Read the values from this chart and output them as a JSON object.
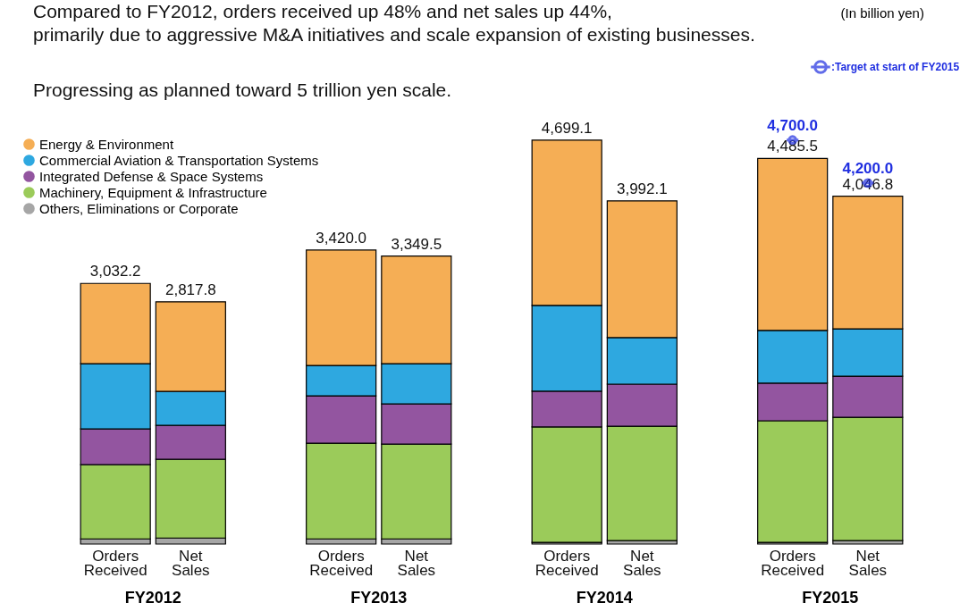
{
  "chart_data": {
    "type": "bar",
    "stacked": true,
    "title": "Compared to FY2012, orders received up 48% and net sales up 44%,\n primarily due to aggressive M&A initiatives and scale expansion of existing businesses.",
    "subtitle": "Progressing as planned toward 5 trillion yen scale.",
    "annotations": [
      "(In billion yen)",
      "FY2012",
      "FY2013",
      "FY2014",
      "FY2015"
    ],
    "categories": [
      "Orders Received",
      "Net Sales",
      "Orders Received",
      "Net Sales",
      "Orders Received",
      "Net Sales",
      "Orders Received",
      "Net Sales"
    ],
    "series": [
      {
        "name": "Others, Eliminations or Corporate",
        "color": "#a6a6a6",
        "values": [
          60,
          70,
          60,
          60,
          20,
          40,
          20,
          40
        ]
      },
      {
        "name": "Machinery, Equipment & Infrastructure",
        "color": "#9bcb5a",
        "values": [
          863,
          915,
          1113,
          1102,
          1342,
          1331,
          1414,
          1435
        ]
      },
      {
        "name": "Integrated Defense & Space Systems",
        "color": "#9355a0",
        "values": [
          416,
          395,
          551,
          468,
          416,
          489,
          437,
          478
        ]
      },
      {
        "name": "Commercial Aviation & Transportation Systems",
        "color": "#2ea8e0",
        "values": [
          759,
          395,
          354,
          468,
          998,
          541,
          614,
          551
        ]
      },
      {
        "name": "Energy & Environment",
        "color": "#f5ae55",
        "values": [
          934,
          1043,
          1342,
          1251.5,
          1923,
          1591,
          2000.5,
          1543
        ]
      },
      {
        "name": ":Target at start of FY2015",
        "type": "scatter",
        "marker": "circle",
        "color": "#1f2ee0",
        "values": [
          null,
          null,
          null,
          null,
          null,
          null,
          4700,
          4200
        ],
        "value_labels": [
          null,
          null,
          null,
          null,
          null,
          null,
          "4,700.0",
          "4,200.0"
        ]
      }
    ],
    "totals": [
      "3,032.2",
      "2,817.8",
      "3,420.0",
      "3,349.5",
      "4,699.1",
      "3,992.1",
      "4,485.5",
      "4,046.8"
    ],
    "legend": "top left",
    "tick_labels": false
  }
}
